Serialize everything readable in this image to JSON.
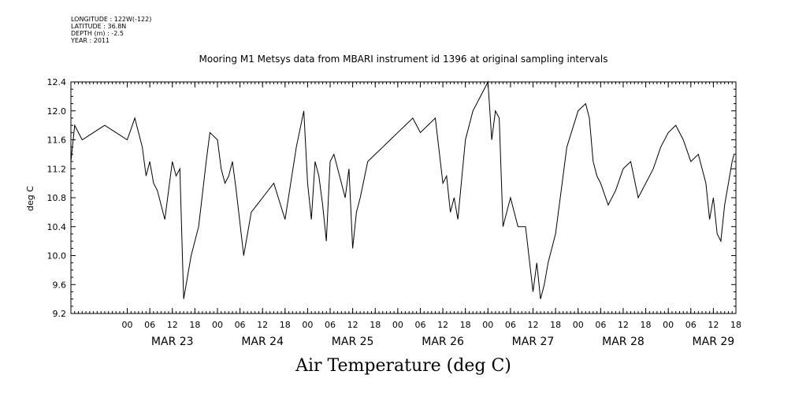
{
  "meta": {
    "longitude": "LONGITUDE : 122W(-122)",
    "latitude": "LATITUDE : 36.8N",
    "depth": "DEPTH (m) : -2.5",
    "year": "YEAR : 2011"
  },
  "chart_data": {
    "type": "line",
    "title": "Mooring M1 Metsys data from MBARI instrument id 1396 at original sampling intervals",
    "bottom_title": "Air Temperature (deg C)",
    "ylabel": "deg C",
    "xlabel": "",
    "ylim": [
      9.2,
      12.4
    ],
    "yticks": [
      "9.2",
      "9.6",
      "10.0",
      "10.4",
      "10.8",
      "11.2",
      "11.6",
      "12.0",
      "12.4"
    ],
    "xlim": [
      "2011-03-22T09:00",
      "2011-03-29T18:00"
    ],
    "hour_ticks": [
      "00",
      "06",
      "12",
      "18",
      "00",
      "06",
      "12",
      "18",
      "00",
      "06",
      "12",
      "18",
      "00",
      "06",
      "12",
      "18",
      "00",
      "06",
      "12",
      "18",
      "00",
      "06",
      "12",
      "18",
      "00",
      "06",
      "12",
      "18"
    ],
    "day_labels": [
      "MAR 23",
      "MAR 24",
      "MAR 25",
      "MAR 26",
      "MAR 27",
      "MAR 28",
      "MAR 29"
    ],
    "series": [
      {
        "x": [
          "2011-03-22T09:00",
          "2011-03-22T10:00",
          "2011-03-22T12:00",
          "2011-03-22T15:00",
          "2011-03-22T18:00",
          "2011-03-22T21:00",
          "2011-03-23T00:00",
          "2011-03-23T02:00",
          "2011-03-23T04:00",
          "2011-03-23T05:00",
          "2011-03-23T06:00",
          "2011-03-23T07:00",
          "2011-03-23T08:00",
          "2011-03-23T10:00",
          "2011-03-23T12:00",
          "2011-03-23T13:00",
          "2011-03-23T14:00",
          "2011-03-23T15:00",
          "2011-03-23T17:00",
          "2011-03-23T19:00",
          "2011-03-23T21:00",
          "2011-03-23T22:00",
          "2011-03-24T00:00",
          "2011-03-24T01:00",
          "2011-03-24T02:00",
          "2011-03-24T03:00",
          "2011-03-24T04:00",
          "2011-03-24T05:00",
          "2011-03-24T07:00",
          "2011-03-24T09:00",
          "2011-03-24T12:00",
          "2011-03-24T15:00",
          "2011-03-24T18:00",
          "2011-03-24T21:00",
          "2011-03-24T23:00",
          "2011-03-25T00:00",
          "2011-03-25T01:00",
          "2011-03-25T02:00",
          "2011-03-25T03:00",
          "2011-03-25T04:00",
          "2011-03-25T05:00",
          "2011-03-25T06:00",
          "2011-03-25T07:00",
          "2011-03-25T08:00",
          "2011-03-25T10:00",
          "2011-03-25T11:00",
          "2011-03-25T12:00",
          "2011-03-25T13:00",
          "2011-03-25T14:00",
          "2011-03-25T16:00",
          "2011-03-25T18:00",
          "2011-03-25T20:00",
          "2011-03-25T22:00",
          "2011-03-26T00:00",
          "2011-03-26T02:00",
          "2011-03-26T04:00",
          "2011-03-26T05:00",
          "2011-03-26T06:00",
          "2011-03-26T08:00",
          "2011-03-26T10:00",
          "2011-03-26T12:00",
          "2011-03-26T13:00",
          "2011-03-26T14:00",
          "2011-03-26T15:00",
          "2011-03-26T16:00",
          "2011-03-26T18:00",
          "2011-03-26T20:00",
          "2011-03-26T22:00",
          "2011-03-27T00:00",
          "2011-03-27T01:00",
          "2011-03-27T02:00",
          "2011-03-27T03:00",
          "2011-03-27T04:00",
          "2011-03-27T05:00",
          "2011-03-27T06:00",
          "2011-03-27T08:00",
          "2011-03-27T10:00",
          "2011-03-27T12:00",
          "2011-03-27T13:00",
          "2011-03-27T14:00",
          "2011-03-27T15:00",
          "2011-03-27T16:00",
          "2011-03-27T18:00",
          "2011-03-27T21:00",
          "2011-03-28T00:00",
          "2011-03-28T02:00",
          "2011-03-28T03:00",
          "2011-03-28T04:00",
          "2011-03-28T05:00",
          "2011-03-28T06:00",
          "2011-03-28T08:00",
          "2011-03-28T10:00",
          "2011-03-28T12:00",
          "2011-03-28T14:00",
          "2011-03-28T16:00",
          "2011-03-28T18:00",
          "2011-03-28T20:00",
          "2011-03-28T22:00",
          "2011-03-29T00:00",
          "2011-03-29T02:00",
          "2011-03-29T04:00",
          "2011-03-29T06:00",
          "2011-03-29T08:00",
          "2011-03-29T10:00",
          "2011-03-29T11:00",
          "2011-03-29T12:00",
          "2011-03-29T13:00",
          "2011-03-29T14:00",
          "2011-03-29T15:00",
          "2011-03-29T16:00",
          "2011-03-29T17:00",
          "2011-03-29T17:30"
        ],
        "y": [
          11.3,
          11.8,
          11.6,
          11.7,
          11.8,
          11.7,
          11.6,
          11.9,
          11.5,
          11.1,
          11.3,
          11.0,
          10.9,
          10.5,
          11.3,
          11.1,
          11.2,
          9.4,
          10.0,
          10.4,
          11.3,
          11.7,
          11.6,
          11.2,
          11.0,
          11.1,
          11.3,
          10.9,
          10.0,
          10.6,
          10.8,
          11.0,
          10.5,
          11.5,
          12.0,
          11.0,
          10.5,
          11.3,
          11.1,
          10.7,
          10.2,
          11.3,
          11.4,
          11.2,
          10.8,
          11.2,
          10.1,
          10.6,
          10.8,
          11.3,
          11.4,
          11.5,
          11.6,
          11.7,
          11.8,
          11.9,
          11.8,
          11.7,
          11.8,
          11.9,
          11.0,
          11.1,
          10.6,
          10.8,
          10.5,
          11.6,
          12.0,
          12.2,
          12.4,
          11.6,
          12.0,
          11.9,
          10.4,
          10.6,
          10.8,
          10.4,
          10.4,
          9.5,
          9.9,
          9.4,
          9.6,
          9.9,
          10.3,
          11.5,
          12.0,
          12.1,
          11.9,
          11.3,
          11.1,
          11.0,
          10.7,
          10.9,
          11.2,
          11.3,
          10.8,
          11.0,
          11.2,
          11.5,
          11.7,
          11.8,
          11.6,
          11.3,
          11.4,
          11.0,
          10.5,
          10.8,
          10.3,
          10.2,
          10.7,
          11.0,
          11.3,
          11.4
        ]
      }
    ]
  }
}
